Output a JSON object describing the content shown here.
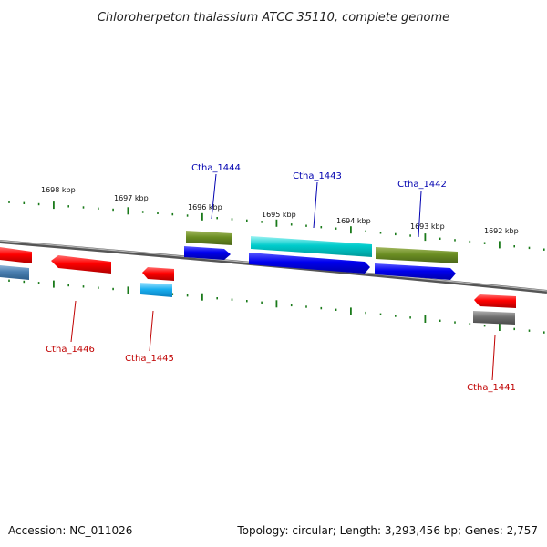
{
  "title": "Chloroherpeton thalassium ATCC 35110, complete genome",
  "footer": {
    "accession": "Accession: NC_011026",
    "summary": "Topology: circular; Length: 3,293,456 bp; Genes: 2,757"
  },
  "colors": {
    "label_above": "#0000b0",
    "label_below": "#c00000",
    "tick": "#1a7a1a",
    "backbone": "#888888"
  },
  "kbp_labels": [
    "1698 kbp",
    "1697 kbp",
    "1696 kbp",
    "1695 kbp",
    "1694 kbp",
    "1693 kbp",
    "1692 kbp"
  ],
  "gene_labels": {
    "ctha_1444": "Ctha_1444",
    "ctha_1443": "Ctha_1443",
    "ctha_1442": "Ctha_1442",
    "ctha_1446": "Ctha_1446",
    "ctha_1445": "Ctha_1445",
    "ctha_1441": "Ctha_1441"
  }
}
